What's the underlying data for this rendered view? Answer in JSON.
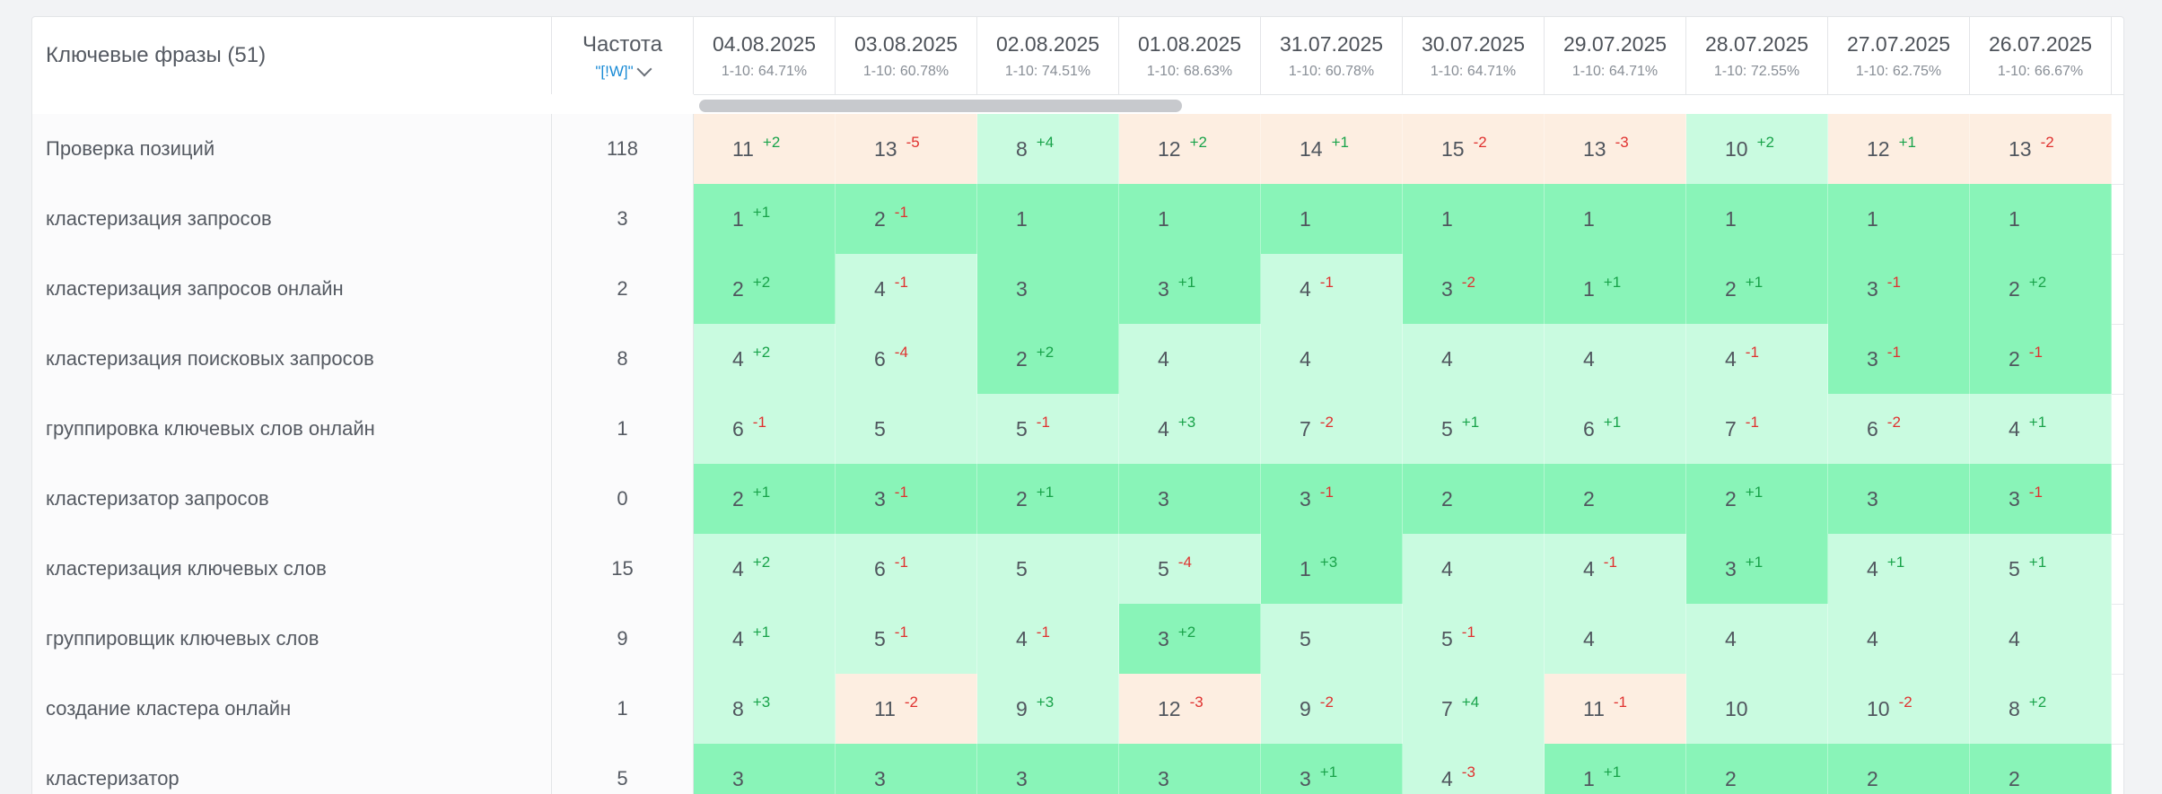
{
  "header": {
    "phrases_title": "Ключевые фразы (51)",
    "frequency_title": "Частота",
    "frequency_filter": "\"[!W]\""
  },
  "dates": [
    {
      "date": "04.08.2025",
      "top": "1-10: 64.71%"
    },
    {
      "date": "03.08.2025",
      "top": "1-10: 60.78%"
    },
    {
      "date": "02.08.2025",
      "top": "1-10: 74.51%"
    },
    {
      "date": "01.08.2025",
      "top": "1-10: 68.63%"
    },
    {
      "date": "31.07.2025",
      "top": "1-10: 60.78%"
    },
    {
      "date": "30.07.2025",
      "top": "1-10: 64.71%"
    },
    {
      "date": "29.07.2025",
      "top": "1-10: 64.71%"
    },
    {
      "date": "28.07.2025",
      "top": "1-10: 72.55%"
    },
    {
      "date": "27.07.2025",
      "top": "1-10: 62.75%"
    },
    {
      "date": "26.07.2025",
      "top": "1-10: 66.67%"
    }
  ],
  "rows": [
    {
      "phrase": "Проверка позиций",
      "freq": "118",
      "cells": [
        {
          "v": "11",
          "d": "+2"
        },
        {
          "v": "13",
          "d": "-5"
        },
        {
          "v": "8",
          "d": "+4"
        },
        {
          "v": "12",
          "d": "+2"
        },
        {
          "v": "14",
          "d": "+1"
        },
        {
          "v": "15",
          "d": "-2"
        },
        {
          "v": "13",
          "d": "-3"
        },
        {
          "v": "10",
          "d": "+2"
        },
        {
          "v": "12",
          "d": "+1"
        },
        {
          "v": "13",
          "d": "-2"
        }
      ]
    },
    {
      "phrase": "кластеризация запросов",
      "freq": "3",
      "cells": [
        {
          "v": "1",
          "d": "+1"
        },
        {
          "v": "2",
          "d": "-1"
        },
        {
          "v": "1",
          "d": ""
        },
        {
          "v": "1",
          "d": ""
        },
        {
          "v": "1",
          "d": ""
        },
        {
          "v": "1",
          "d": ""
        },
        {
          "v": "1",
          "d": ""
        },
        {
          "v": "1",
          "d": ""
        },
        {
          "v": "1",
          "d": ""
        },
        {
          "v": "1",
          "d": ""
        }
      ]
    },
    {
      "phrase": "кластеризация запросов онлайн",
      "freq": "2",
      "cells": [
        {
          "v": "2",
          "d": "+2"
        },
        {
          "v": "4",
          "d": "-1"
        },
        {
          "v": "3",
          "d": ""
        },
        {
          "v": "3",
          "d": "+1"
        },
        {
          "v": "4",
          "d": "-1"
        },
        {
          "v": "3",
          "d": "-2"
        },
        {
          "v": "1",
          "d": "+1"
        },
        {
          "v": "2",
          "d": "+1"
        },
        {
          "v": "3",
          "d": "-1"
        },
        {
          "v": "2",
          "d": "+2"
        }
      ]
    },
    {
      "phrase": "кластеризация поисковых запросов",
      "freq": "8",
      "cells": [
        {
          "v": "4",
          "d": "+2"
        },
        {
          "v": "6",
          "d": "-4"
        },
        {
          "v": "2",
          "d": "+2"
        },
        {
          "v": "4",
          "d": ""
        },
        {
          "v": "4",
          "d": ""
        },
        {
          "v": "4",
          "d": ""
        },
        {
          "v": "4",
          "d": ""
        },
        {
          "v": "4",
          "d": "-1"
        },
        {
          "v": "3",
          "d": "-1"
        },
        {
          "v": "2",
          "d": "-1"
        }
      ]
    },
    {
      "phrase": "группировка ключевых слов онлайн",
      "freq": "1",
      "cells": [
        {
          "v": "6",
          "d": "-1"
        },
        {
          "v": "5",
          "d": ""
        },
        {
          "v": "5",
          "d": "-1"
        },
        {
          "v": "4",
          "d": "+3"
        },
        {
          "v": "7",
          "d": "-2"
        },
        {
          "v": "5",
          "d": "+1"
        },
        {
          "v": "6",
          "d": "+1"
        },
        {
          "v": "7",
          "d": "-1"
        },
        {
          "v": "6",
          "d": "-2"
        },
        {
          "v": "4",
          "d": "+1"
        }
      ]
    },
    {
      "phrase": "кластеризатор запросов",
      "freq": "0",
      "cells": [
        {
          "v": "2",
          "d": "+1"
        },
        {
          "v": "3",
          "d": "-1"
        },
        {
          "v": "2",
          "d": "+1"
        },
        {
          "v": "3",
          "d": ""
        },
        {
          "v": "3",
          "d": "-1"
        },
        {
          "v": "2",
          "d": ""
        },
        {
          "v": "2",
          "d": ""
        },
        {
          "v": "2",
          "d": "+1"
        },
        {
          "v": "3",
          "d": ""
        },
        {
          "v": "3",
          "d": "-1"
        }
      ]
    },
    {
      "phrase": "кластеризация ключевых слов",
      "freq": "15",
      "cells": [
        {
          "v": "4",
          "d": "+2"
        },
        {
          "v": "6",
          "d": "-1"
        },
        {
          "v": "5",
          "d": ""
        },
        {
          "v": "5",
          "d": "-4"
        },
        {
          "v": "1",
          "d": "+3"
        },
        {
          "v": "4",
          "d": ""
        },
        {
          "v": "4",
          "d": "-1"
        },
        {
          "v": "3",
          "d": "+1"
        },
        {
          "v": "4",
          "d": "+1"
        },
        {
          "v": "5",
          "d": "+1"
        }
      ]
    },
    {
      "phrase": "группировщик ключевых слов",
      "freq": "9",
      "cells": [
        {
          "v": "4",
          "d": "+1"
        },
        {
          "v": "5",
          "d": "-1"
        },
        {
          "v": "4",
          "d": "-1"
        },
        {
          "v": "3",
          "d": "+2"
        },
        {
          "v": "5",
          "d": ""
        },
        {
          "v": "5",
          "d": "-1"
        },
        {
          "v": "4",
          "d": ""
        },
        {
          "v": "4",
          "d": ""
        },
        {
          "v": "4",
          "d": ""
        },
        {
          "v": "4",
          "d": ""
        }
      ]
    },
    {
      "phrase": "создание кластера онлайн",
      "freq": "1",
      "cells": [
        {
          "v": "8",
          "d": "+3"
        },
        {
          "v": "11",
          "d": "-2"
        },
        {
          "v": "9",
          "d": "+3"
        },
        {
          "v": "12",
          "d": "-3"
        },
        {
          "v": "9",
          "d": "-2"
        },
        {
          "v": "7",
          "d": "+4"
        },
        {
          "v": "11",
          "d": "-1"
        },
        {
          "v": "10",
          "d": ""
        },
        {
          "v": "10",
          "d": "-2"
        },
        {
          "v": "8",
          "d": "+2"
        }
      ]
    },
    {
      "phrase": "кластеризатор",
      "freq": "5",
      "cells": [
        {
          "v": "3",
          "d": ""
        },
        {
          "v": "3",
          "d": ""
        },
        {
          "v": "3",
          "d": ""
        },
        {
          "v": "3",
          "d": ""
        },
        {
          "v": "3",
          "d": "+1"
        },
        {
          "v": "4",
          "d": "-3"
        },
        {
          "v": "1",
          "d": "+1"
        },
        {
          "v": "2",
          "d": ""
        },
        {
          "v": "2",
          "d": ""
        },
        {
          "v": "2",
          "d": ""
        }
      ]
    }
  ],
  "colors": {
    "top3": "#89f4b8",
    "top10": "#c9fbe0",
    "out_of_top10": "#fdeee1",
    "delta_up": "#19a34a",
    "delta_down": "#e0312f",
    "link": "#1a8bd6"
  },
  "icons": {
    "filter_toggle": "chevron-down-icon"
  }
}
